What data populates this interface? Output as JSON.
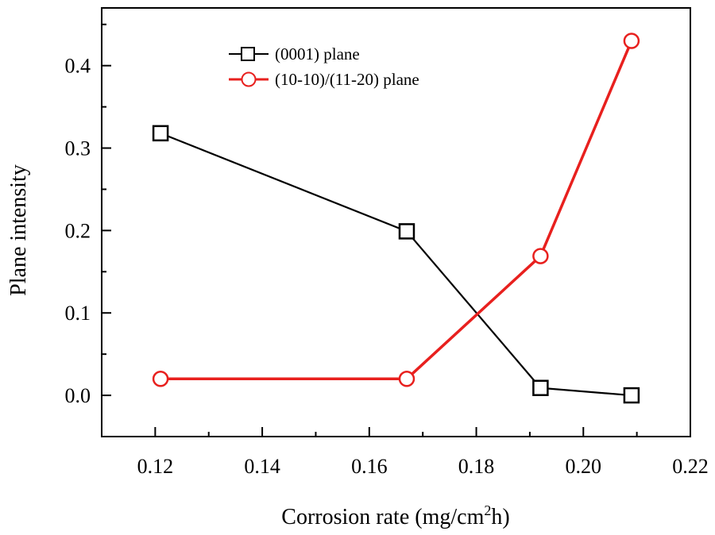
{
  "chart_data": {
    "type": "line",
    "title": "",
    "xlabel": "Corrosion rate (mg/cm",
    "xlabel_sup": "2",
    "xlabel_suffix": "h)",
    "ylabel": "Plane intensity",
    "xlim": [
      0.11,
      0.22
    ],
    "ylim": [
      -0.05,
      0.47
    ],
    "xticks": [
      0.12,
      0.14,
      0.16,
      0.18,
      0.2,
      0.22
    ],
    "xtick_labels": [
      "0.12",
      "0.14",
      "0.16",
      "0.18",
      "0.20",
      "0.22"
    ],
    "yticks": [
      0.0,
      0.1,
      0.2,
      0.3,
      0.4
    ],
    "ytick_labels": [
      "0.0",
      "0.1",
      "0.2",
      "0.3",
      "0.4"
    ],
    "legend_position": "top-center",
    "grid": false,
    "series": [
      {
        "name": "(0001) plane",
        "color": "#000000",
        "marker": "square",
        "x": [
          0.121,
          0.167,
          0.192,
          0.209
        ],
        "y": [
          0.318,
          0.199,
          0.009,
          0.0
        ]
      },
      {
        "name": "(10-10)/(11-20) plane",
        "color": "#e8201e",
        "marker": "circle",
        "x": [
          0.121,
          0.167,
          0.192,
          0.209
        ],
        "y": [
          0.02,
          0.02,
          0.169,
          0.43
        ]
      }
    ]
  }
}
